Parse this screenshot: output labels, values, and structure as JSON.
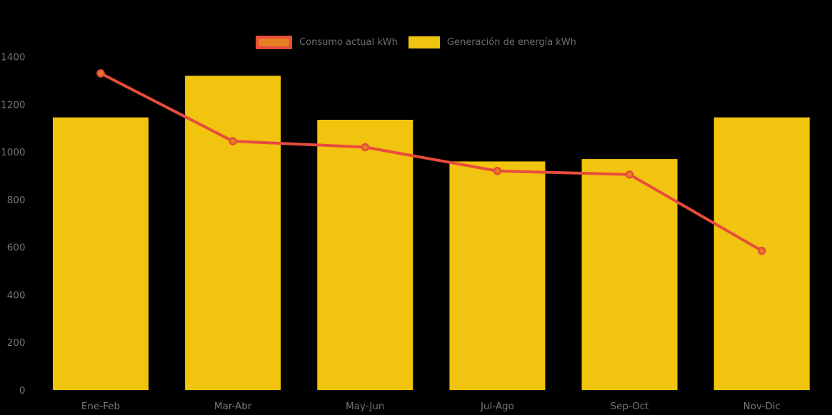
{
  "chart_data": {
    "type": "combo-bar-line",
    "title": "",
    "categories": [
      "Ene-Feb",
      "Mar-Abr",
      "May-Jun",
      "Jul-Ago",
      "Sep-Oct",
      "Nov-Dic"
    ],
    "series": [
      {
        "name": "Consumo actual kWh",
        "type": "line",
        "color": "#e74c3c",
        "marker_color": "#e67e22",
        "values": [
          1330,
          1045,
          1020,
          920,
          905,
          585
        ]
      },
      {
        "name": "Generación de energía kWh",
        "type": "bar",
        "color": "#f1c40f",
        "values": [
          1145,
          1320,
          1135,
          960,
          970,
          1145
        ]
      }
    ],
    "xlabel": "",
    "ylabel": "",
    "ylim": [
      0,
      1400
    ],
    "yticks": [
      0,
      200,
      400,
      600,
      800,
      1000,
      1200,
      1400
    ],
    "grid": false,
    "legend_position": "top-center",
    "background_color": "#000000",
    "axis_text_color": "#757575",
    "legend_text_color": "#6e6e6e"
  }
}
